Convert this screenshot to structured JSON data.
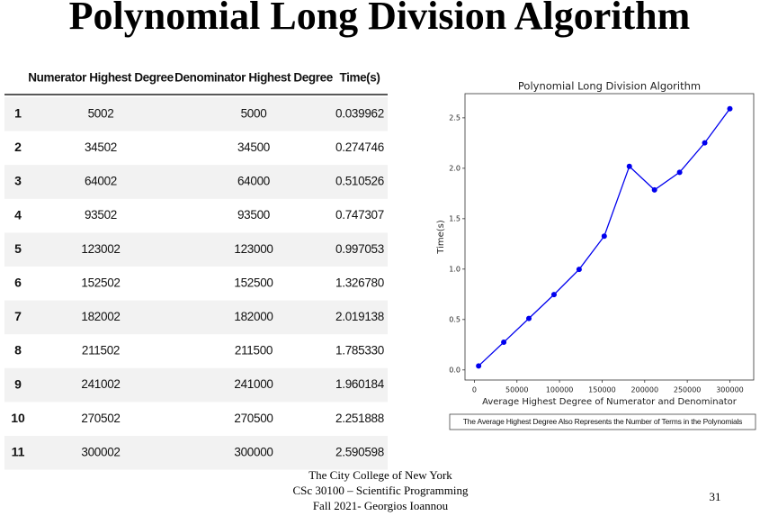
{
  "title": "Polynomial Long Division Algorithm",
  "table": {
    "columns": [
      "Numerator Highest Degree",
      "Denominator Highest Degree",
      "Time(s)"
    ],
    "rows": [
      [
        "1",
        "5002",
        "5000",
        "0.039962"
      ],
      [
        "2",
        "34502",
        "34500",
        "0.274746"
      ],
      [
        "3",
        "64002",
        "64000",
        "0.510526"
      ],
      [
        "4",
        "93502",
        "93500",
        "0.747307"
      ],
      [
        "5",
        "123002",
        "123000",
        "0.997053"
      ],
      [
        "6",
        "152502",
        "152500",
        "1.326780"
      ],
      [
        "7",
        "182002",
        "182000",
        "2.019138"
      ],
      [
        "8",
        "211502",
        "211500",
        "1.785330"
      ],
      [
        "9",
        "241002",
        "241000",
        "1.960184"
      ],
      [
        "10",
        "270502",
        "270500",
        "2.251888"
      ],
      [
        "11",
        "300002",
        "300000",
        "2.590598"
      ]
    ]
  },
  "chart_data": {
    "type": "line",
    "title": "Polynomial Long Division Algorithm",
    "xlabel": "Average Highest Degree of Numerator and Denominator",
    "ylabel": "Time(s)",
    "note": "The Average Highest Degree Also Represents the Number of Terms in the Polynomials",
    "x": [
      5001,
      34501,
      64001,
      93501,
      123001,
      152501,
      182001,
      211501,
      241001,
      270501,
      300001
    ],
    "series": [
      {
        "name": "Time(s)",
        "color": "#0000ee",
        "values": [
          0.039962,
          0.274746,
          0.510526,
          0.747307,
          0.997053,
          1.32678,
          2.019138,
          1.78533,
          1.960184,
          2.251888,
          2.590598
        ]
      }
    ],
    "xlim": [
      -11000,
      328000
    ],
    "ylim": [
      -0.1,
      2.74
    ],
    "xticks": [
      0,
      50000,
      100000,
      150000,
      200000,
      250000,
      300000
    ],
    "yticks": [
      {
        "value": 0,
        "label": "0.0"
      },
      0.5,
      {
        "value": 1,
        "label": "1.0"
      },
      1.5,
      {
        "value": 2,
        "label": "2.0"
      },
      2.5
    ]
  },
  "footer": {
    "lines": [
      "The City College of New York",
      "CSc 30100 – Scientific Programming",
      "Fall 2021- Georgios Ioannou"
    ],
    "page": "31"
  }
}
